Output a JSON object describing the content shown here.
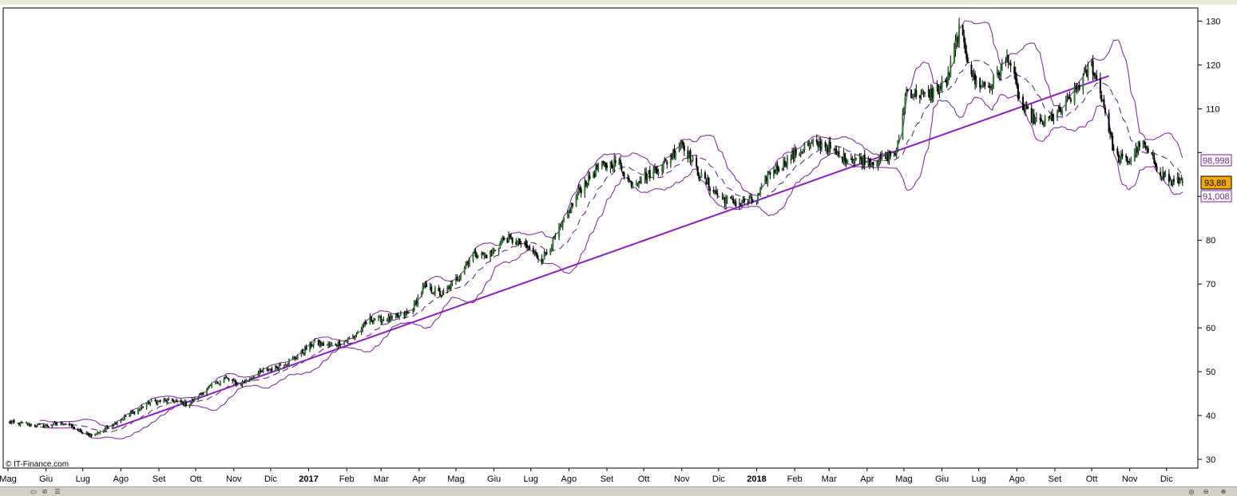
{
  "watermark": "© IT-Finance.com",
  "price_tags": {
    "upper_band": "98,998",
    "last_price": "93,88",
    "lower_band": "91,008"
  },
  "colors": {
    "band": "#7b1fa2",
    "trendline": "#8a1fc4",
    "last_tag_bg": "#f5a800",
    "up_candle": "#2e7d32",
    "down_candle": "#000000"
  },
  "toolbar": {
    "left_icons": [
      "copy-icon",
      "link-icon",
      "list-icon"
    ],
    "right_icons": [
      "zoom-reset-icon",
      "zoom-out-icon",
      "zoom-in-icon"
    ]
  },
  "chart_data": {
    "type": "candlestick",
    "indicators": [
      "bollinger-bands",
      "trendline"
    ],
    "y_ticks": [
      30,
      40,
      50,
      60,
      70,
      80,
      90,
      100,
      110,
      120,
      130
    ],
    "y_tick_labels": [
      "30",
      "40",
      "50",
      "60",
      "70",
      "80",
      "",
      "",
      "110",
      "120",
      "130"
    ],
    "ylim": [
      28,
      133
    ],
    "x_start": "2016-05-01",
    "x_end": "2018-12-20",
    "x_labels": [
      {
        "label": "Mag",
        "date": "2016-05-01",
        "bold": false
      },
      {
        "label": "Giu",
        "date": "2016-06-01",
        "bold": false
      },
      {
        "label": "Lug",
        "date": "2016-07-01",
        "bold": false
      },
      {
        "label": "Ago",
        "date": "2016-08-01",
        "bold": false
      },
      {
        "label": "Set",
        "date": "2016-09-01",
        "bold": false
      },
      {
        "label": "Ott",
        "date": "2016-10-01",
        "bold": false
      },
      {
        "label": "Nov",
        "date": "2016-11-01",
        "bold": false
      },
      {
        "label": "Dic",
        "date": "2016-12-01",
        "bold": false
      },
      {
        "label": "2017",
        "date": "2017-01-01",
        "bold": true
      },
      {
        "label": "Feb",
        "date": "2017-02-01",
        "bold": false
      },
      {
        "label": "Mar",
        "date": "2017-03-01",
        "bold": false
      },
      {
        "label": "Apr",
        "date": "2017-04-01",
        "bold": false
      },
      {
        "label": "Mag",
        "date": "2017-05-01",
        "bold": false
      },
      {
        "label": "Giu",
        "date": "2017-06-01",
        "bold": false
      },
      {
        "label": "Lug",
        "date": "2017-07-01",
        "bold": false
      },
      {
        "label": "Ago",
        "date": "2017-08-01",
        "bold": false
      },
      {
        "label": "Set",
        "date": "2017-09-01",
        "bold": false
      },
      {
        "label": "Ott",
        "date": "2017-10-01",
        "bold": false
      },
      {
        "label": "Nov",
        "date": "2017-11-01",
        "bold": false
      },
      {
        "label": "Dic",
        "date": "2017-12-01",
        "bold": false
      },
      {
        "label": "2018",
        "date": "2018-01-01",
        "bold": true
      },
      {
        "label": "Feb",
        "date": "2018-02-01",
        "bold": false
      },
      {
        "label": "Mar",
        "date": "2018-03-01",
        "bold": false
      },
      {
        "label": "Apr",
        "date": "2018-04-01",
        "bold": false
      },
      {
        "label": "Mag",
        "date": "2018-05-01",
        "bold": false
      },
      {
        "label": "Giu",
        "date": "2018-06-01",
        "bold": false
      },
      {
        "label": "Lug",
        "date": "2018-07-01",
        "bold": false
      },
      {
        "label": "Ago",
        "date": "2018-08-01",
        "bold": false
      },
      {
        "label": "Set",
        "date": "2018-09-01",
        "bold": false
      },
      {
        "label": "Ott",
        "date": "2018-10-01",
        "bold": false
      },
      {
        "label": "Nov",
        "date": "2018-11-01",
        "bold": false
      },
      {
        "label": "Dic",
        "date": "2018-12-01",
        "bold": false
      }
    ],
    "close_path": [
      [
        "2016-05-01",
        38.5
      ],
      [
        "2016-05-15",
        38.0
      ],
      [
        "2016-06-01",
        37.5
      ],
      [
        "2016-06-15",
        38.5
      ],
      [
        "2016-07-01",
        36.0
      ],
      [
        "2016-07-10",
        35.5
      ],
      [
        "2016-07-25",
        38.0
      ],
      [
        "2016-08-10",
        40.5
      ],
      [
        "2016-08-25",
        43.0
      ],
      [
        "2016-09-10",
        43.5
      ],
      [
        "2016-09-25",
        42.5
      ],
      [
        "2016-10-10",
        46.0
      ],
      [
        "2016-10-25",
        48.5
      ],
      [
        "2016-11-05",
        47.0
      ],
      [
        "2016-11-20",
        49.5
      ],
      [
        "2016-12-05",
        51.0
      ],
      [
        "2016-12-20",
        53.0
      ],
      [
        "2017-01-05",
        56.5
      ],
      [
        "2017-01-20",
        56.0
      ],
      [
        "2017-02-05",
        57.5
      ],
      [
        "2017-02-20",
        62.0
      ],
      [
        "2017-03-10",
        62.0
      ],
      [
        "2017-03-25",
        63.5
      ],
      [
        "2017-04-05",
        69.5
      ],
      [
        "2017-04-20",
        67.5
      ],
      [
        "2017-05-01",
        71.0
      ],
      [
        "2017-05-15",
        77.0
      ],
      [
        "2017-05-28",
        76.5
      ],
      [
        "2017-06-10",
        80.5
      ],
      [
        "2017-06-25",
        79.0
      ],
      [
        "2017-07-10",
        75.5
      ],
      [
        "2017-07-25",
        82.5
      ],
      [
        "2017-08-10",
        91.5
      ],
      [
        "2017-08-25",
        96.5
      ],
      [
        "2017-09-10",
        98.0
      ],
      [
        "2017-09-20",
        93.0
      ],
      [
        "2017-10-05",
        95.0
      ],
      [
        "2017-10-20",
        98.0
      ],
      [
        "2017-11-01",
        102.5
      ],
      [
        "2017-11-15",
        95.0
      ],
      [
        "2017-12-01",
        90.0
      ],
      [
        "2017-12-15",
        88.5
      ],
      [
        "2018-01-01",
        89.0
      ],
      [
        "2018-01-10",
        95.0
      ],
      [
        "2018-01-25",
        98.0
      ],
      [
        "2018-02-10",
        101.5
      ],
      [
        "2018-02-25",
        102.0
      ],
      [
        "2018-03-10",
        99.0
      ],
      [
        "2018-03-25",
        98.5
      ],
      [
        "2018-04-10",
        98.0
      ],
      [
        "2018-04-25",
        100.0
      ],
      [
        "2018-05-03",
        114.0
      ],
      [
        "2018-05-20",
        113.0
      ],
      [
        "2018-06-05",
        116.0
      ],
      [
        "2018-06-15",
        128.0
      ],
      [
        "2018-06-28",
        116.0
      ],
      [
        "2018-07-10",
        115.0
      ],
      [
        "2018-07-25",
        122.0
      ],
      [
        "2018-08-05",
        110.0
      ],
      [
        "2018-08-20",
        106.5
      ],
      [
        "2018-09-05",
        109.0
      ],
      [
        "2018-09-20",
        115.0
      ],
      [
        "2018-10-01",
        120.0
      ],
      [
        "2018-10-10",
        112.0
      ],
      [
        "2018-10-20",
        99.0
      ],
      [
        "2018-11-01",
        98.0
      ],
      [
        "2018-11-10",
        102.5
      ],
      [
        "2018-11-25",
        96.0
      ],
      [
        "2018-12-05",
        93.0
      ],
      [
        "2018-12-15",
        93.88
      ]
    ],
    "trendline": {
      "from": [
        "2016-07-25",
        37.0
      ],
      "to": [
        "2018-10-15",
        117.5
      ]
    }
  }
}
